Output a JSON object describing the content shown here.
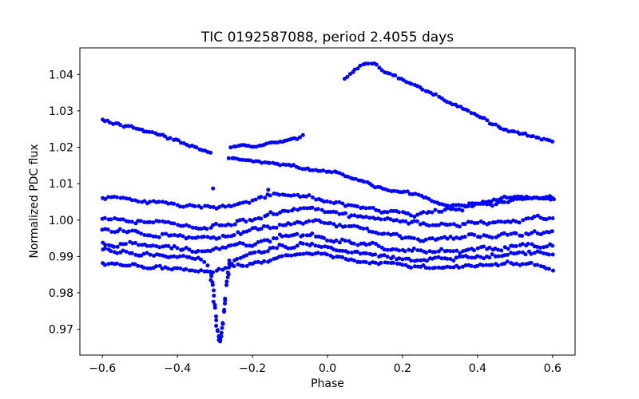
{
  "chart_data": {
    "type": "scatter",
    "title": "TIC 0192587088, period 2.4055 days",
    "xlabel": "Phase",
    "ylabel": "Normalized PDC flux",
    "marker": {
      "shape": "circle",
      "color": "#0000ff",
      "radius_px": 2.5
    },
    "grid": false,
    "legend": null,
    "background": "#ffffff",
    "xlim": [
      -0.66,
      0.66
    ],
    "ylim": [
      0.9629,
      1.0473
    ],
    "xticks": {
      "values": [
        -0.6,
        -0.4,
        -0.2,
        0.0,
        0.2,
        0.4,
        0.6
      ],
      "labels": [
        "−0.6",
        "−0.4",
        "−0.2",
        "0.0",
        "0.2",
        "0.4",
        "0.6"
      ]
    },
    "yticks": {
      "values": [
        0.97,
        0.98,
        0.99,
        1.0,
        1.01,
        1.02,
        1.03,
        1.04
      ],
      "labels": [
        "0.97",
        "0.98",
        "0.99",
        "1.00",
        "1.01",
        "1.02",
        "1.03",
        "1.04"
      ]
    },
    "series": [
      {
        "name": "segment-top-arc",
        "start": 0.045,
        "end": 0.6,
        "step": 0.0072,
        "jitter": 0.0003,
        "wiggle": 0.0003,
        "passes": 1,
        "anchors": [
          [
            0.045,
            1.039
          ],
          [
            0.065,
            1.0402
          ],
          [
            0.085,
            1.042
          ],
          [
            0.105,
            1.0433
          ],
          [
            0.125,
            1.043
          ],
          [
            0.145,
            1.0412
          ],
          [
            0.165,
            1.0408
          ],
          [
            0.185,
            1.0395
          ],
          [
            0.21,
            1.0382
          ],
          [
            0.25,
            1.0362
          ],
          [
            0.3,
            1.0335
          ],
          [
            0.35,
            1.031
          ],
          [
            0.4,
            1.0285
          ],
          [
            0.45,
            1.026
          ],
          [
            0.5,
            1.0242
          ],
          [
            0.55,
            1.0228
          ],
          [
            0.58,
            1.0218
          ],
          [
            0.6,
            1.0216
          ]
        ]
      },
      {
        "name": "segment-upper-left",
        "start": -0.6,
        "end": -0.313,
        "step": 0.007,
        "jitter": 0.0003,
        "wiggle": 0.00025,
        "passes": 1,
        "anchors": [
          [
            -0.6,
            1.0274
          ],
          [
            -0.55,
            1.0262
          ],
          [
            -0.5,
            1.025
          ],
          [
            -0.46,
            1.024
          ],
          [
            -0.42,
            1.0225
          ],
          [
            -0.4,
            1.0218
          ],
          [
            -0.37,
            1.0206
          ],
          [
            -0.35,
            1.0196
          ],
          [
            -0.33,
            1.019
          ],
          [
            -0.313,
            1.0184
          ]
        ]
      },
      {
        "name": "segment-upper-mid",
        "start": -0.257,
        "end": -0.068,
        "step": 0.0068,
        "jitter": 0.00028,
        "wiggle": 0.00022,
        "passes": 1,
        "anchors": [
          [
            -0.257,
            1.02
          ],
          [
            -0.235,
            1.0205
          ],
          [
            -0.215,
            1.0203
          ],
          [
            -0.195,
            1.02
          ],
          [
            -0.175,
            1.0208
          ],
          [
            -0.155,
            1.021
          ],
          [
            -0.135,
            1.0212
          ],
          [
            -0.115,
            1.0216
          ],
          [
            -0.095,
            1.022
          ],
          [
            -0.08,
            1.0224
          ],
          [
            -0.068,
            1.0232
          ]
        ]
      },
      {
        "name": "segment-mid-decline",
        "start": -0.262,
        "end": 0.6,
        "step": 0.0072,
        "jitter": 0.00035,
        "wiggle": 0.0003,
        "passes": 1,
        "anchors": [
          [
            -0.262,
            1.0168
          ],
          [
            -0.22,
            1.0162
          ],
          [
            -0.18,
            1.0158
          ],
          [
            -0.14,
            1.0152
          ],
          [
            -0.1,
            1.015
          ],
          [
            -0.06,
            1.0144
          ],
          [
            -0.02,
            1.0136
          ],
          [
            0.02,
            1.0128
          ],
          [
            0.06,
            1.0118
          ],
          [
            0.1,
            1.0106
          ],
          [
            0.14,
            1.009
          ],
          [
            0.18,
            1.008
          ],
          [
            0.22,
            1.0072
          ],
          [
            0.26,
            1.0062
          ],
          [
            0.3,
            1.0048
          ],
          [
            0.33,
            1.0038
          ],
          [
            0.37,
            1.0042
          ],
          [
            0.42,
            1.0052
          ],
          [
            0.47,
            1.006
          ],
          [
            0.52,
            1.0062
          ],
          [
            0.56,
            1.0058
          ],
          [
            0.6,
            1.0056
          ]
        ]
      },
      {
        "name": "band-1",
        "start": -0.6,
        "end": 0.6,
        "step": 0.008,
        "jitter": 0.00045,
        "wiggle": 0.0004,
        "passes": 1,
        "anchors": [
          [
            -0.6,
            1.0062
          ],
          [
            -0.52,
            1.0054
          ],
          [
            -0.44,
            1.0047
          ],
          [
            -0.36,
            1.0042
          ],
          [
            -0.3,
            1.0038
          ],
          [
            -0.24,
            1.0042
          ],
          [
            -0.18,
            1.0058
          ],
          [
            -0.13,
            1.0075
          ],
          [
            -0.08,
            1.007
          ],
          [
            -0.03,
            1.006
          ],
          [
            0.03,
            1.0045
          ],
          [
            0.1,
            1.0028
          ],
          [
            0.17,
            1.0018
          ],
          [
            0.24,
            1.0016
          ],
          [
            0.32,
            1.0028
          ],
          [
            0.4,
            1.0042
          ],
          [
            0.48,
            1.0052
          ],
          [
            0.55,
            1.0058
          ],
          [
            0.6,
            1.0058
          ]
        ]
      },
      {
        "name": "band-2",
        "start": -0.6,
        "end": 0.6,
        "step": 0.008,
        "jitter": 0.0005,
        "wiggle": 0.0004,
        "passes": 1,
        "anchors": [
          [
            -0.6,
            1.0003
          ],
          [
            -0.5,
            0.9996
          ],
          [
            -0.4,
            0.999
          ],
          [
            -0.32,
            0.9984
          ],
          [
            -0.26,
            0.999
          ],
          [
            -0.19,
            1.0006
          ],
          [
            -0.12,
            1.0022
          ],
          [
            -0.05,
            1.003
          ],
          [
            0.02,
            1.0018
          ],
          [
            0.1,
            1.0004
          ],
          [
            0.18,
            0.9994
          ],
          [
            0.26,
            0.9987
          ],
          [
            0.34,
            0.9986
          ],
          [
            0.42,
            0.9992
          ],
          [
            0.5,
            1.0
          ],
          [
            0.56,
            1.0006
          ],
          [
            0.6,
            1.0008
          ]
        ]
      },
      {
        "name": "band-3",
        "start": -0.6,
        "end": 0.6,
        "step": 0.008,
        "jitter": 0.0005,
        "wiggle": 0.0004,
        "passes": 1,
        "anchors": [
          [
            -0.6,
            0.9972
          ],
          [
            -0.5,
            0.9965
          ],
          [
            -0.4,
            0.9958
          ],
          [
            -0.32,
            0.9952
          ],
          [
            -0.26,
            0.9958
          ],
          [
            -0.19,
            0.9974
          ],
          [
            -0.12,
            0.999
          ],
          [
            -0.05,
            0.9996
          ],
          [
            0.02,
            0.9985
          ],
          [
            0.1,
            0.997
          ],
          [
            0.18,
            0.9958
          ],
          [
            0.26,
            0.995
          ],
          [
            0.34,
            0.995
          ],
          [
            0.42,
            0.9956
          ],
          [
            0.5,
            0.9962
          ],
          [
            0.56,
            0.9968
          ],
          [
            0.6,
            0.997
          ]
        ]
      },
      {
        "name": "band-4",
        "start": -0.6,
        "end": 0.6,
        "step": 0.008,
        "jitter": 0.00055,
        "wiggle": 0.00045,
        "passes": 1,
        "anchors": [
          [
            -0.6,
            0.9938
          ],
          [
            -0.5,
            0.993
          ],
          [
            -0.4,
            0.9923
          ],
          [
            -0.32,
            0.9917
          ],
          [
            -0.26,
            0.9924
          ],
          [
            -0.19,
            0.994
          ],
          [
            -0.12,
            0.9954
          ],
          [
            -0.05,
            0.996
          ],
          [
            0.02,
            0.9948
          ],
          [
            0.1,
            0.9932
          ],
          [
            0.18,
            0.992
          ],
          [
            0.26,
            0.9913
          ],
          [
            0.34,
            0.9914
          ],
          [
            0.42,
            0.9922
          ],
          [
            0.5,
            0.993
          ],
          [
            0.56,
            0.9936
          ],
          [
            0.6,
            0.9934
          ]
        ]
      },
      {
        "name": "band-5-transit",
        "start": -0.6,
        "end": 0.6,
        "step": 0.008,
        "jitter": 0.0005,
        "wiggle": 0.0004,
        "passes": 1,
        "anchors": [
          [
            -0.6,
            0.9916
          ],
          [
            -0.5,
            0.9908
          ],
          [
            -0.4,
            0.99
          ],
          [
            -0.345,
            0.9894
          ],
          [
            -0.322,
            0.9886
          ],
          [
            -0.308,
            0.982
          ],
          [
            -0.298,
            0.972
          ],
          [
            -0.29,
            0.9672
          ],
          [
            -0.283,
            0.9688
          ],
          [
            -0.273,
            0.978
          ],
          [
            -0.263,
            0.9862
          ],
          [
            -0.252,
            0.9894
          ],
          [
            -0.19,
            0.9912
          ],
          [
            -0.12,
            0.9926
          ],
          [
            -0.05,
            0.9933
          ],
          [
            0.02,
            0.9922
          ],
          [
            0.1,
            0.9908
          ],
          [
            0.18,
            0.9897
          ],
          [
            0.26,
            0.9892
          ],
          [
            0.34,
            0.9894
          ],
          [
            0.42,
            0.99
          ],
          [
            0.5,
            0.9908
          ],
          [
            0.56,
            0.9912
          ],
          [
            0.6,
            0.9908
          ]
        ]
      },
      {
        "name": "band-6",
        "start": -0.6,
        "end": 0.6,
        "step": 0.008,
        "jitter": 0.00045,
        "wiggle": 0.00035,
        "passes": 1,
        "anchors": [
          [
            -0.6,
            0.988
          ],
          [
            -0.5,
            0.9873
          ],
          [
            -0.4,
            0.9867
          ],
          [
            -0.32,
            0.9862
          ],
          [
            -0.26,
            0.9868
          ],
          [
            -0.19,
            0.9884
          ],
          [
            -0.12,
            0.99
          ],
          [
            -0.05,
            0.9908
          ],
          [
            0.02,
            0.9898
          ],
          [
            0.1,
            0.9884
          ],
          [
            0.18,
            0.9874
          ],
          [
            0.26,
            0.9869
          ],
          [
            0.34,
            0.9872
          ],
          [
            0.42,
            0.9877
          ],
          [
            0.5,
            0.9882
          ],
          [
            0.55,
            0.9884
          ],
          [
            0.58,
            0.9872
          ],
          [
            0.6,
            0.9864
          ]
        ]
      },
      {
        "name": "transit-column",
        "start": -0.31,
        "end": -0.262,
        "step": 0.0034,
        "jitter": 0.0011,
        "wiggle": 0.0006,
        "passes": 2,
        "anchors": [
          [
            -0.312,
            0.9868
          ],
          [
            -0.306,
            0.9822
          ],
          [
            -0.3,
            0.9765
          ],
          [
            -0.295,
            0.9716
          ],
          [
            -0.29,
            0.9676
          ],
          [
            -0.286,
            0.967
          ],
          [
            -0.282,
            0.9694
          ],
          [
            -0.277,
            0.974
          ],
          [
            -0.272,
            0.9792
          ],
          [
            -0.267,
            0.9842
          ],
          [
            -0.262,
            0.988
          ]
        ]
      }
    ],
    "outlier_points": [
      [
        -0.305,
        1.0087
      ],
      [
        -0.158,
        1.0083
      ]
    ]
  }
}
